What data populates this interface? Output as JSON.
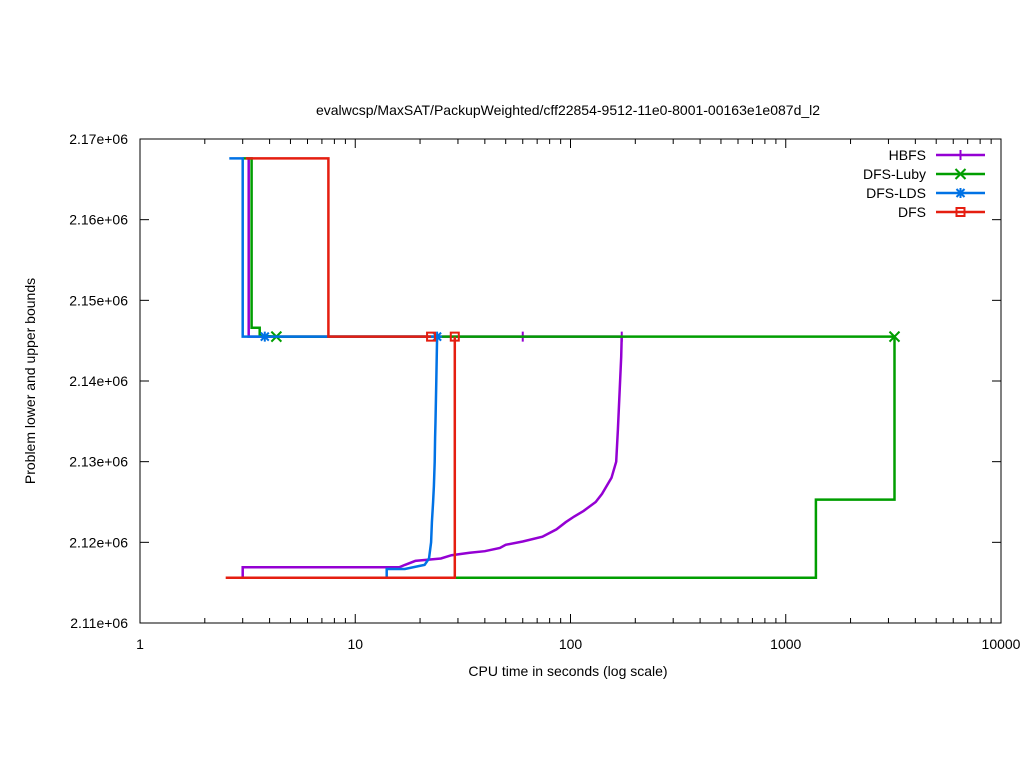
{
  "chart_data": {
    "type": "line",
    "title": "evalwcsp/MaxSAT/PackupWeighted/cff22854-9512-11e0-8001-00163e1e087d_l2",
    "xlabel": "CPU time in seconds (log scale)",
    "ylabel": "Problem lower and upper bounds",
    "x_scale": "log",
    "xlim": [
      1,
      10000
    ],
    "ylim": [
      2110000,
      2170000
    ],
    "x_ticks": [
      1,
      10,
      100,
      1000,
      10000
    ],
    "x_tick_labels": [
      "1",
      "10",
      "100",
      "1000",
      "10000"
    ],
    "y_ticks": [
      2110000,
      2120000,
      2130000,
      2140000,
      2150000,
      2160000,
      2170000
    ],
    "y_tick_labels": [
      "2.11e+06",
      "2.12e+06",
      "2.13e+06",
      "2.14e+06",
      "2.15e+06",
      "2.16e+06",
      "2.17e+06"
    ],
    "grid": false,
    "legend_position": "top-right",
    "series": [
      {
        "name": "HBFS",
        "color": "#9400d3",
        "marker": "plus",
        "upper": [
          [
            3.2,
            2167600
          ],
          [
            3.2,
            2145500
          ],
          [
            4.3,
            2145500
          ],
          [
            60,
            2145500
          ],
          [
            172,
            2145500
          ]
        ],
        "upper_markers": [
          [
            60,
            2145500
          ]
        ],
        "lower": [
          [
            3.0,
            2115600
          ],
          [
            3.0,
            2116900
          ],
          [
            16,
            2116900
          ],
          [
            17,
            2117200
          ],
          [
            19,
            2117700
          ],
          [
            25,
            2118000
          ],
          [
            28,
            2118400
          ],
          [
            34,
            2118700
          ],
          [
            40,
            2118900
          ],
          [
            47,
            2119300
          ],
          [
            50,
            2119700
          ],
          [
            60,
            2120100
          ],
          [
            74,
            2120700
          ],
          [
            86,
            2121600
          ],
          [
            95,
            2122500
          ],
          [
            104,
            2123200
          ],
          [
            115,
            2123900
          ],
          [
            131,
            2125000
          ],
          [
            140,
            2126000
          ],
          [
            155,
            2128000
          ],
          [
            163,
            2130000
          ],
          [
            166,
            2134000
          ],
          [
            170,
            2140000
          ],
          [
            172,
            2143000
          ],
          [
            173,
            2145500
          ]
        ],
        "lower_markers": [
          [
            173,
            2145500
          ]
        ]
      },
      {
        "name": "DFS-Luby",
        "color": "#009e00",
        "marker": "x",
        "upper": [
          [
            3.0,
            2167600
          ],
          [
            3.3,
            2167600
          ],
          [
            3.3,
            2146600
          ],
          [
            3.6,
            2146600
          ],
          [
            3.6,
            2145600
          ],
          [
            4.3,
            2145500
          ],
          [
            3200,
            2145500
          ]
        ],
        "upper_markers": [
          [
            4.3,
            2145500
          ],
          [
            3200,
            2145500
          ]
        ],
        "lower": [
          [
            29,
            2115600
          ],
          [
            1380,
            2115600
          ],
          [
            1380,
            2125300
          ],
          [
            3200,
            2125300
          ],
          [
            3200,
            2145500
          ]
        ],
        "lower_markers": []
      },
      {
        "name": "DFS-LDS",
        "color": "#0072e5",
        "marker": "star",
        "upper": [
          [
            2.6,
            2167600
          ],
          [
            3.0,
            2167600
          ],
          [
            3.0,
            2145500
          ],
          [
            3.8,
            2145500
          ],
          [
            24,
            2145500
          ]
        ],
        "upper_markers": [
          [
            3.8,
            2145500
          ],
          [
            24,
            2145500
          ]
        ],
        "lower": [
          [
            14,
            2115600
          ],
          [
            14,
            2116700
          ],
          [
            17,
            2116700
          ],
          [
            21,
            2117200
          ],
          [
            22,
            2118000
          ],
          [
            22.5,
            2120000
          ],
          [
            22.7,
            2122500
          ],
          [
            23,
            2125000
          ],
          [
            23.2,
            2127000
          ],
          [
            23.4,
            2130000
          ],
          [
            23.5,
            2133000
          ],
          [
            23.6,
            2135000
          ],
          [
            23.8,
            2140000
          ],
          [
            24,
            2145500
          ]
        ],
        "lower_markers": []
      },
      {
        "name": "DFS",
        "color": "#e51e10",
        "marker": "square",
        "upper": [
          [
            3.1,
            2167600
          ],
          [
            7.5,
            2167600
          ],
          [
            7.5,
            2145500
          ],
          [
            22.5,
            2145500
          ]
        ],
        "upper_markers": [
          [
            22.5,
            2145500
          ]
        ],
        "lower": [
          [
            2.5,
            2115600
          ],
          [
            29,
            2115600
          ],
          [
            29,
            2145500
          ]
        ],
        "lower_markers": [
          [
            29,
            2145500
          ]
        ]
      }
    ]
  }
}
